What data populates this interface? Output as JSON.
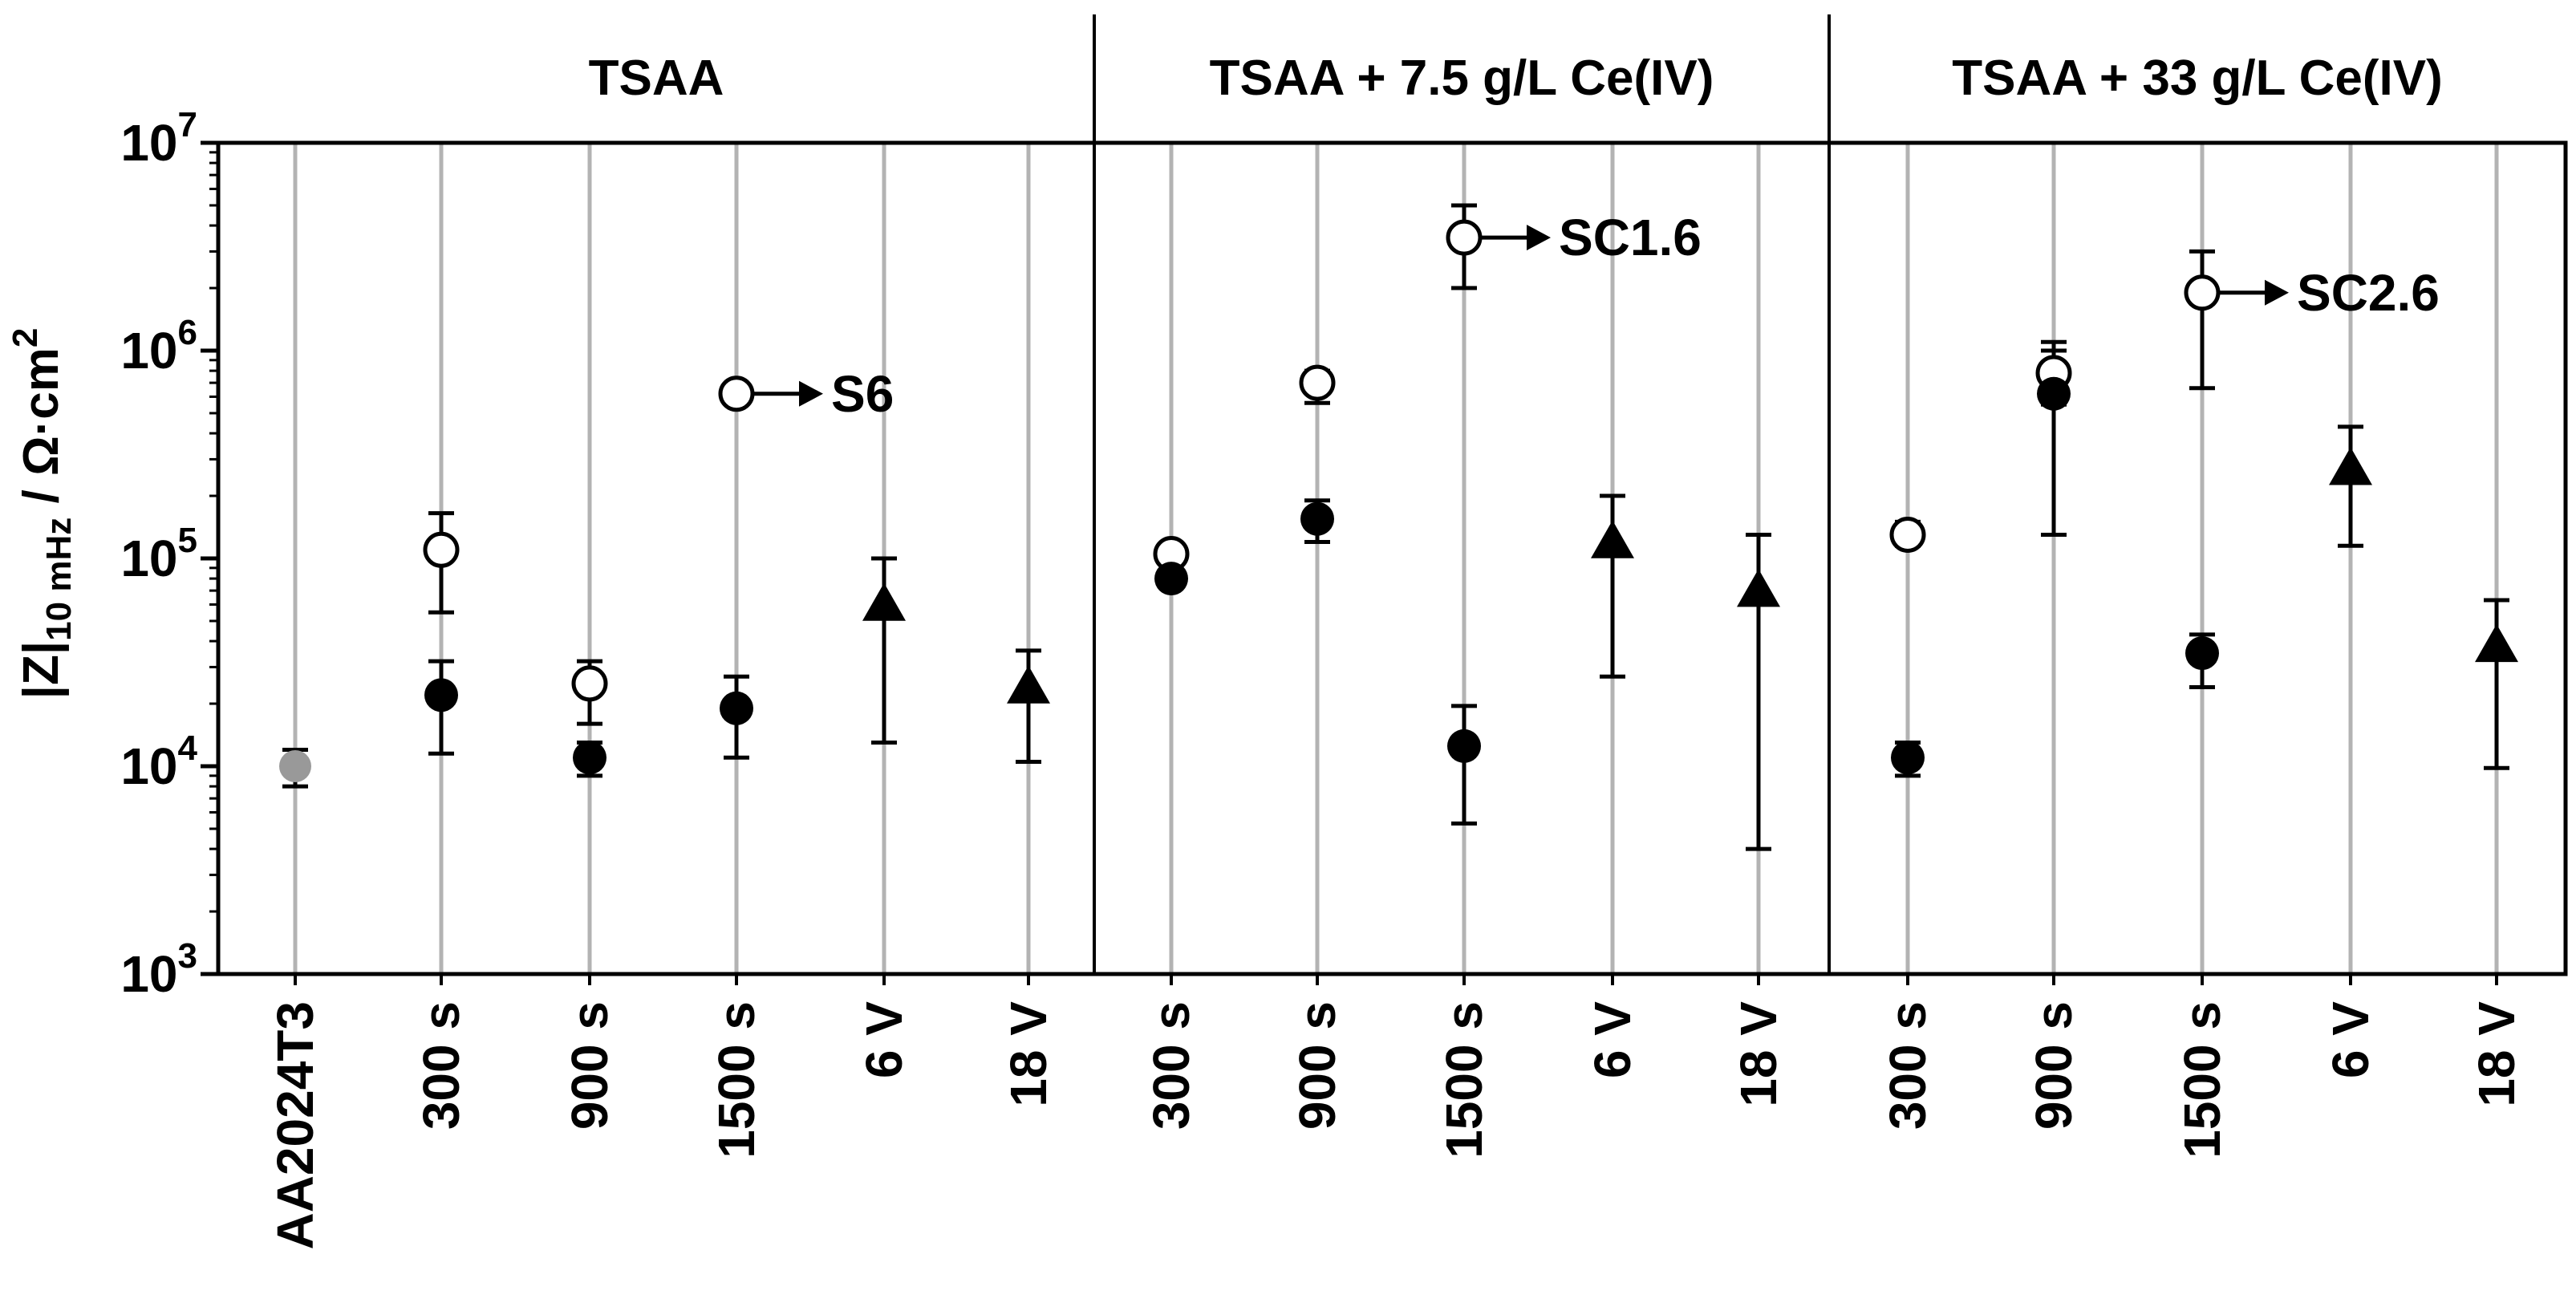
{
  "chart_data": {
    "type": "scatter",
    "yscale": "log",
    "ylim": [
      1000,
      10000000
    ],
    "ylabel": {
      "base": "|Z|",
      "subscript": "10 mHz",
      "unit_text": " / Ω·cm",
      "unit_sup": "2"
    },
    "yticks": [
      {
        "value": 1000,
        "base": "10",
        "exp": "3"
      },
      {
        "value": 10000,
        "base": "10",
        "exp": "4"
      },
      {
        "value": 100000,
        "base": "10",
        "exp": "5"
      },
      {
        "value": 1000000,
        "base": "10",
        "exp": "6"
      },
      {
        "value": 10000000,
        "base": "10",
        "exp": "7"
      }
    ],
    "panels": [
      {
        "title": "TSAA",
        "categories": [
          "AA2024T3",
          "300 s",
          "900 s",
          "1500 s",
          "6 V",
          "18 V"
        ]
      },
      {
        "title": "TSAA + 7.5 g/L Ce(IV)",
        "categories": [
          "300 s",
          "900 s",
          "1500 s",
          "6 V",
          "18 V"
        ]
      },
      {
        "title": "TSAA + 33 g/L Ce(IV)",
        "categories": [
          "300 s",
          "900 s",
          "1500 s",
          "6 V",
          "18 V"
        ]
      }
    ],
    "points": [
      {
        "panel": 0,
        "cat": 0,
        "marker": "filled-gray",
        "value": 10000,
        "err": [
          8000,
          12000
        ]
      },
      {
        "panel": 0,
        "cat": 1,
        "marker": "open",
        "value": 110000,
        "err": [
          55000,
          165000
        ]
      },
      {
        "panel": 0,
        "cat": 1,
        "marker": "filled",
        "value": 22000,
        "err": [
          11500,
          32000
        ]
      },
      {
        "panel": 0,
        "cat": 2,
        "marker": "open",
        "value": 25000,
        "err": [
          16000,
          32000
        ]
      },
      {
        "panel": 0,
        "cat": 2,
        "marker": "filled",
        "value": 11000,
        "err": [
          9000,
          13000
        ]
      },
      {
        "panel": 0,
        "cat": 3,
        "marker": "open",
        "value": 620000,
        "err": [
          580000,
          680000
        ]
      },
      {
        "panel": 0,
        "cat": 3,
        "marker": "filled",
        "value": 19000,
        "err": [
          11000,
          27000
        ]
      },
      {
        "panel": 0,
        "cat": 4,
        "marker": "triangle",
        "value": 60000,
        "err": [
          13000,
          100000
        ]
      },
      {
        "panel": 0,
        "cat": 5,
        "marker": "triangle",
        "value": 24000,
        "err": [
          10500,
          36000
        ]
      },
      {
        "panel": 1,
        "cat": 0,
        "marker": "open",
        "value": 105000,
        "err": [
          95000,
          115000
        ]
      },
      {
        "panel": 1,
        "cat": 0,
        "marker": "filled",
        "value": 80000,
        "err": [
          75000,
          85000
        ]
      },
      {
        "panel": 1,
        "cat": 1,
        "marker": "open",
        "value": 700000,
        "err": [
          560000,
          800000
        ]
      },
      {
        "panel": 1,
        "cat": 1,
        "marker": "filled",
        "value": 155000,
        "err": [
          120000,
          190000
        ]
      },
      {
        "panel": 1,
        "cat": 2,
        "marker": "open",
        "value": 3500000,
        "err": [
          2000000,
          5000000
        ]
      },
      {
        "panel": 1,
        "cat": 2,
        "marker": "filled",
        "value": 12500,
        "err": [
          5300,
          19500
        ]
      },
      {
        "panel": 1,
        "cat": 3,
        "marker": "triangle",
        "value": 120000,
        "err": [
          27000,
          200000
        ]
      },
      {
        "panel": 1,
        "cat": 4,
        "marker": "triangle",
        "value": 70000,
        "err": [
          4000,
          130000
        ]
      },
      {
        "panel": 2,
        "cat": 0,
        "marker": "open",
        "value": 130000,
        "err": [
          115000,
          150000
        ]
      },
      {
        "panel": 2,
        "cat": 0,
        "marker": "filled",
        "value": 11000,
        "err": [
          9000,
          13000
        ]
      },
      {
        "panel": 2,
        "cat": 1,
        "marker": "open",
        "value": 780000,
        "err": [
          550000,
          1100000
        ]
      },
      {
        "panel": 2,
        "cat": 1,
        "marker": "filled",
        "value": 620000,
        "err": [
          130000,
          1000000
        ]
      },
      {
        "panel": 2,
        "cat": 2,
        "marker": "open",
        "value": 1900000,
        "err": [
          660000,
          3000000
        ]
      },
      {
        "panel": 2,
        "cat": 2,
        "marker": "filled",
        "value": 35000,
        "err": [
          24000,
          43000
        ]
      },
      {
        "panel": 2,
        "cat": 3,
        "marker": "triangle",
        "value": 270000,
        "err": [
          115000,
          430000
        ]
      },
      {
        "panel": 2,
        "cat": 4,
        "marker": "triangle",
        "value": 38000,
        "err": [
          9800,
          63000
        ]
      }
    ],
    "annotations": [
      {
        "panel": 0,
        "cat": 3,
        "value": 620000,
        "text": "S6"
      },
      {
        "panel": 1,
        "cat": 2,
        "value": 3500000,
        "text": "SC1.6"
      },
      {
        "panel": 2,
        "cat": 2,
        "value": 1900000,
        "text": "SC2.6"
      }
    ],
    "colors": {
      "axis": "#000000",
      "gridline": "#b3b3b3",
      "filled_marker": "#000000",
      "gray_marker": "#999999",
      "open_marker_fill": "#ffffff"
    }
  }
}
